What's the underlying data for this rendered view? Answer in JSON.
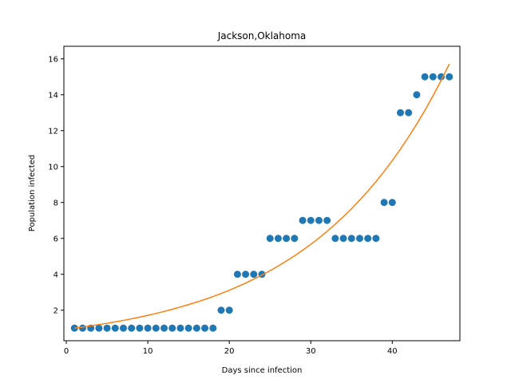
{
  "chart_data": {
    "type": "scatter",
    "title": "Jackson,Oklahoma",
    "xlabel": "Days since infection",
    "ylabel": "Population infected",
    "xlim": [
      -0.3,
      48.3
    ],
    "ylim": [
      0.3,
      16.7
    ],
    "xticks": [
      0,
      10,
      20,
      30,
      40
    ],
    "yticks": [
      2,
      4,
      6,
      8,
      10,
      12,
      14,
      16
    ],
    "grid": false,
    "legend": "none",
    "series": [
      {
        "kind": "scatter",
        "color": "#1f77b4",
        "x": [
          1,
          2,
          3,
          4,
          5,
          6,
          7,
          8,
          9,
          10,
          11,
          12,
          13,
          14,
          15,
          16,
          17,
          18,
          19,
          20,
          21,
          22,
          23,
          24,
          25,
          26,
          27,
          28,
          29,
          30,
          31,
          32,
          33,
          34,
          35,
          36,
          37,
          38,
          39,
          40,
          41,
          42,
          43,
          44,
          45,
          46,
          47
        ],
        "y": [
          1,
          1,
          1,
          1,
          1,
          1,
          1,
          1,
          1,
          1,
          1,
          1,
          1,
          1,
          1,
          1,
          1,
          1,
          2,
          2,
          4,
          4,
          4,
          4,
          6,
          6,
          6,
          6,
          7,
          7,
          7,
          7,
          6,
          6,
          6,
          6,
          6,
          6,
          8,
          8,
          13,
          13,
          14,
          15,
          15,
          15,
          15
        ]
      },
      {
        "kind": "line",
        "color": "#ff7f0e",
        "x": [
          1,
          2,
          3,
          4,
          5,
          6,
          7,
          8,
          9,
          10,
          11,
          12,
          13,
          14,
          15,
          16,
          17,
          18,
          19,
          20,
          21,
          22,
          23,
          24,
          25,
          26,
          27,
          28,
          29,
          30,
          31,
          32,
          33,
          34,
          35,
          36,
          37,
          38,
          39,
          40,
          41,
          42,
          43,
          44,
          45,
          46,
          47
        ],
        "y": [
          1.0,
          1.06,
          1.13,
          1.2,
          1.27,
          1.35,
          1.43,
          1.52,
          1.61,
          1.71,
          1.82,
          1.93,
          2.05,
          2.18,
          2.31,
          2.45,
          2.6,
          2.76,
          2.93,
          3.11,
          3.31,
          3.51,
          3.73,
          3.96,
          4.2,
          4.46,
          4.74,
          5.03,
          5.34,
          5.67,
          6.02,
          6.39,
          6.79,
          7.21,
          7.65,
          8.13,
          8.63,
          9.16,
          9.73,
          10.33,
          10.97,
          11.65,
          12.37,
          13.13,
          13.94,
          14.8,
          15.72
        ]
      }
    ]
  }
}
